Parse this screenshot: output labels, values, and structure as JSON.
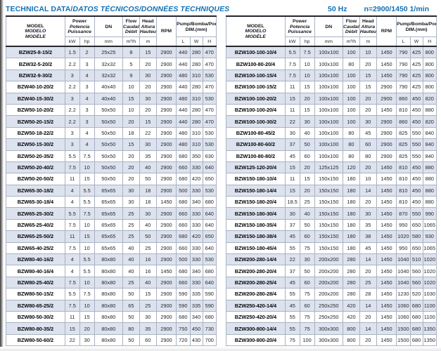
{
  "header": {
    "title_main": "TECHNICAL DATA/",
    "title_rest": "DATOS TÉCNICOS/DONNÉES TECHNIQUES",
    "frequency": "50 Hz",
    "speed": "n=2900/1450 1/min"
  },
  "colors": {
    "accent_blue": "#1170b5",
    "row_shade": "#dde3ee",
    "border_dark": "#26262e",
    "border_light": "#a9b2c1"
  },
  "columns": {
    "model": [
      "MODEL",
      "MODELO",
      "MODÈLE"
    ],
    "power": [
      "Power",
      "Potencia",
      "Puissance"
    ],
    "dn": "DN",
    "flow": [
      "Flow",
      "Caudal",
      "Débit"
    ],
    "head": [
      "Head",
      "Altura",
      "Hauteur"
    ],
    "rpm": "RPM",
    "pump_dim": [
      "Pump/Bomba/Pompe",
      "DIM.(mm)"
    ],
    "units": [
      "kW",
      "hp",
      "mm",
      "m³/h",
      "m",
      "L",
      "W",
      "H"
    ]
  },
  "left_rows": [
    [
      "BZW25-8-15/2",
      "1.5",
      "2",
      "25x25",
      "8",
      "15",
      "2900",
      "440",
      "280",
      "470"
    ],
    [
      "BZW32-5-20/2",
      "2.2",
      "3",
      "32x32",
      "5",
      "20",
      "2900",
      "440",
      "280",
      "470"
    ],
    [
      "BZW32-9-30/2",
      "3",
      "4",
      "32x32",
      "9",
      "30",
      "2900",
      "480",
      "310",
      "530"
    ],
    [
      "BZW40-10-20/2",
      "2.2",
      "3",
      "40x40",
      "10",
      "20",
      "2900",
      "440",
      "280",
      "470"
    ],
    [
      "BZW40-15-30/2",
      "3",
      "4",
      "40x40",
      "15",
      "30",
      "2900",
      "480",
      "310",
      "530"
    ],
    [
      "BZW50-10-20/2",
      "2.2",
      "3",
      "50x50",
      "10",
      "20",
      "2900",
      "440",
      "280",
      "470"
    ],
    [
      "BZW50-20-15/2",
      "2.2",
      "3",
      "50x50",
      "20",
      "15",
      "2900",
      "440",
      "280",
      "470"
    ],
    [
      "BZW50-18-22/2",
      "3",
      "4",
      "50x50",
      "18",
      "22",
      "2900",
      "480",
      "310",
      "530"
    ],
    [
      "BZW50-15-30/2",
      "3",
      "4",
      "50x50",
      "15",
      "30",
      "2900",
      "480",
      "310",
      "530"
    ],
    [
      "BZW50-20-35/2",
      "5.5",
      "7.5",
      "50x50",
      "20",
      "35",
      "2900",
      "680",
      "350",
      "630"
    ],
    [
      "BZW50-20-40/2",
      "7.5",
      "10",
      "50x50",
      "20",
      "40",
      "2900",
      "660",
      "330",
      "640"
    ],
    [
      "BZW50-20-50/2",
      "11",
      "15",
      "50x50",
      "20",
      "50",
      "2900",
      "680",
      "420",
      "650"
    ],
    [
      "BZW65-30-18/2",
      "4",
      "5.5",
      "65x65",
      "30",
      "18",
      "2900",
      "500",
      "330",
      "530"
    ],
    [
      "BZW65-30-18/4",
      "4",
      "5.5",
      "65x65",
      "30",
      "18",
      "1450",
      "680",
      "340",
      "680"
    ],
    [
      "BZW65-25-30/2",
      "5.5",
      "7.5",
      "65x65",
      "25",
      "30",
      "2900",
      "660",
      "330",
      "640"
    ],
    [
      "BZW65-25-40/2",
      "7.5",
      "10",
      "65x65",
      "25",
      "40",
      "2900",
      "660",
      "330",
      "640"
    ],
    [
      "BZW65-25-50/2",
      "11",
      "15",
      "65x65",
      "25",
      "50",
      "2900",
      "680",
      "420",
      "650"
    ],
    [
      "BZW65-40-25/2",
      "7.5",
      "10",
      "65x65",
      "40",
      "25",
      "2900",
      "660",
      "330",
      "640"
    ],
    [
      "BZW80-40-16/2",
      "4",
      "5.5",
      "80x80",
      "40",
      "16",
      "2900",
      "500",
      "330",
      "530"
    ],
    [
      "BZW80-40-16/4",
      "4",
      "5.5",
      "80x80",
      "40",
      "16",
      "1450",
      "680",
      "340",
      "680"
    ],
    [
      "BZW80-25-40/2",
      "7.5",
      "10",
      "80x80",
      "25",
      "40",
      "2900",
      "660",
      "330",
      "640"
    ],
    [
      "BZW80-50-15/2",
      "5.5",
      "7.5",
      "80x80",
      "50",
      "15",
      "2900",
      "590",
      "335",
      "590"
    ],
    [
      "BZW80-65-25/2",
      "7.5",
      "10",
      "80x80",
      "65",
      "25",
      "2900",
      "590",
      "335",
      "590"
    ],
    [
      "BZW80-50-30/2",
      "11",
      "15",
      "80x80",
      "50",
      "30",
      "2900",
      "680",
      "340",
      "680"
    ],
    [
      "BZW80-80-35/2",
      "15",
      "20",
      "80x80",
      "80",
      "35",
      "2900",
      "750",
      "450",
      "730"
    ],
    [
      "BZW80-50-60/2",
      "22",
      "30",
      "80x80",
      "50",
      "60",
      "2900",
      "720",
      "430",
      "700"
    ]
  ],
  "right_rows": [
    [
      "BZW100-100-10/4",
      "5.5",
      "7.5",
      "100x100",
      "100",
      "10",
      "1450",
      "790",
      "425",
      "800"
    ],
    [
      "BZW100-80-20/4",
      "7.5",
      "10",
      "100x100",
      "80",
      "20",
      "1450",
      "790",
      "425",
      "800"
    ],
    [
      "BZW100-100-15/4",
      "7.5",
      "10",
      "100x100",
      "100",
      "15",
      "1450",
      "790",
      "425",
      "800"
    ],
    [
      "BZW100-100-15/2",
      "11",
      "15",
      "100x100",
      "100",
      "15",
      "2900",
      "790",
      "425",
      "800"
    ],
    [
      "BZW100-100-20/2",
      "15",
      "20",
      "100x100",
      "100",
      "20",
      "2900",
      "860",
      "450",
      "820"
    ],
    [
      "BZW100-100-20/4",
      "11",
      "15",
      "100x100",
      "100",
      "20",
      "1450",
      "810",
      "450",
      "880"
    ],
    [
      "BZW100-100-30/2",
      "22",
      "30",
      "100x100",
      "100",
      "30",
      "2900",
      "860",
      "450",
      "820"
    ],
    [
      "BZW100-80-45/2",
      "30",
      "40",
      "100x100",
      "80",
      "45",
      "2900",
      "825",
      "550",
      "840"
    ],
    [
      "BZW100-80-60/2",
      "37",
      "50",
      "100x100",
      "80",
      "60",
      "2900",
      "825",
      "550",
      "840"
    ],
    [
      "BZW100-80-80/2",
      "45",
      "60",
      "100x100",
      "80",
      "80",
      "2900",
      "825",
      "550",
      "840"
    ],
    [
      "BZW125-120-20/4",
      "15",
      "20",
      "125x125",
      "120",
      "20",
      "1450",
      "810",
      "450",
      "880"
    ],
    [
      "BZW150-180-10/4",
      "11",
      "15",
      "150x150",
      "180",
      "10",
      "1450",
      "810",
      "450",
      "880"
    ],
    [
      "BZW150-180-14/4",
      "15",
      "20",
      "150x150",
      "180",
      "14",
      "1450",
      "810",
      "450",
      "880"
    ],
    [
      "BZW150-180-20/4",
      "18.5",
      "25",
      "150x150",
      "180",
      "20",
      "1450",
      "810",
      "450",
      "880"
    ],
    [
      "BZW150-180-30/4",
      "30",
      "40",
      "150x150",
      "180",
      "30",
      "1450",
      "870",
      "550",
      "990"
    ],
    [
      "BZW150-180-35/4",
      "37",
      "50",
      "150x150",
      "180",
      "35",
      "1450",
      "950",
      "650",
      "1065"
    ],
    [
      "BZW150-180-38/4",
      "45",
      "60",
      "150x150",
      "180",
      "38",
      "1450",
      "1020",
      "580",
      "930"
    ],
    [
      "BZW150-180-45/4",
      "55",
      "75",
      "150x150",
      "180",
      "45",
      "1450",
      "950",
      "650",
      "1065"
    ],
    [
      "BZW200-280-14/4",
      "22",
      "30",
      "200x200",
      "280",
      "14",
      "1450",
      "1040",
      "510",
      "1020"
    ],
    [
      "BZW200-280-20/4",
      "37",
      "50",
      "200x200",
      "280",
      "20",
      "1450",
      "1040",
      "560",
      "1020"
    ],
    [
      "BZW200-280-25/4",
      "45",
      "60",
      "200x200",
      "280",
      "25",
      "1450",
      "1040",
      "560",
      "1020"
    ],
    [
      "BZW200-280-28/4",
      "55",
      "75",
      "200x200",
      "280",
      "28",
      "1450",
      "1230",
      "520",
      "1030"
    ],
    [
      "BZW250-420-14/4",
      "45",
      "60",
      "250x250",
      "420",
      "14",
      "1450",
      "1060",
      "680",
      "1100"
    ],
    [
      "BZW250-420-20/4",
      "55",
      "75",
      "250x250",
      "420",
      "20",
      "1450",
      "1060",
      "680",
      "1100"
    ],
    [
      "BZW300-800-14/4",
      "55",
      "75",
      "300x300",
      "800",
      "14",
      "1450",
      "1500",
      "680",
      "1350"
    ],
    [
      "BZW300-800-20/4",
      "75",
      "100",
      "300x300",
      "800",
      "20",
      "1450",
      "1500",
      "680",
      "1350"
    ]
  ]
}
